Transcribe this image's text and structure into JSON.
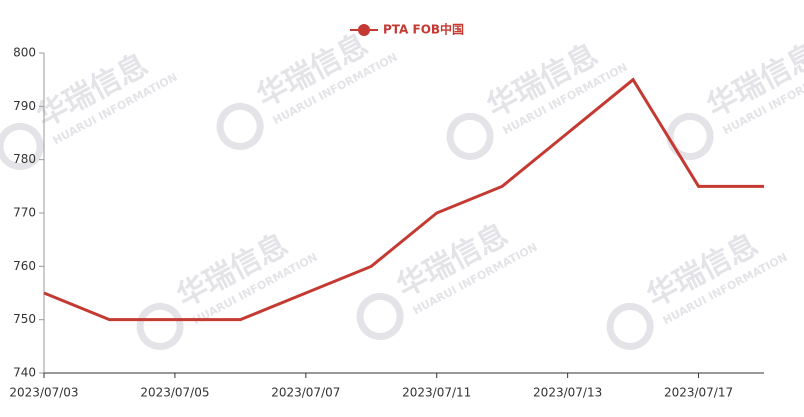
{
  "chart_data": {
    "type": "line",
    "legend_name": "PTA FOB中国",
    "watermark": {
      "title": "华瑞信息",
      "subtitle": "HUARUI INFORMATION"
    },
    "categories": [
      "2023/07/03",
      null,
      "2023/07/05",
      null,
      "2023/07/07",
      null,
      "2023/07/11",
      null,
      "2023/07/13",
      null,
      "2023/07/17",
      null
    ],
    "series": [
      {
        "name": "PTA FOB中国",
        "color": "#c43a32",
        "values": [
          755,
          750,
          750,
          750,
          755,
          760,
          770,
          775,
          785,
          795,
          775,
          775
        ]
      }
    ],
    "ylim": [
      740,
      800
    ],
    "yticks": [
      740,
      750,
      760,
      770,
      780,
      790,
      800
    ],
    "grid": false,
    "legend": "top"
  }
}
